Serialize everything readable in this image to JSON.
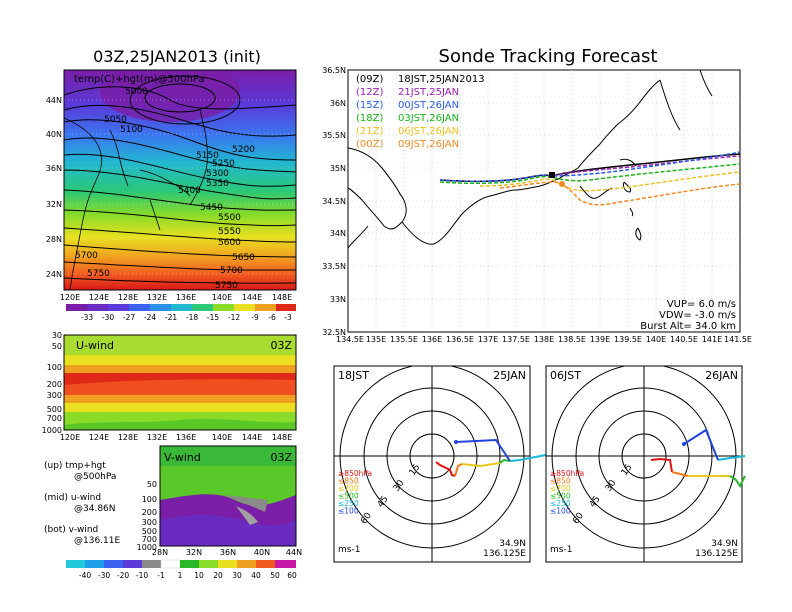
{
  "left_title": "03Z,25JAN2013 (init)",
  "right_title": "Sonde Tracking Forecast",
  "top_map": {
    "label": "temp(C)+hgt(m)@500hPa",
    "lat_labels": [
      "44N",
      "40N",
      "36N",
      "32N",
      "28N",
      "24N"
    ],
    "lon_labels": [
      "120E",
      "124E",
      "128E",
      "132E",
      "136E",
      "140E",
      "144E",
      "148E"
    ],
    "contour_labels": [
      "5000",
      "5050",
      "5100",
      "5150",
      "5200",
      "5250",
      "5300",
      "5350",
      "5400",
      "5450",
      "5500",
      "5550",
      "5600",
      "5650",
      "5700",
      "5700",
      "5750",
      "5750"
    ],
    "colorbar_labels": [
      "-33",
      "-30",
      "-27",
      "-24",
      "-21",
      "-18",
      "-15",
      "-12",
      "-9",
      "-6",
      "-3"
    ]
  },
  "u_panel": {
    "label": "U-wind",
    "time": "03Z",
    "p_labels": [
      "30",
      "50",
      "100",
      "200",
      "300",
      "500",
      "700",
      "1000"
    ],
    "lon_labels": [
      "120E",
      "124E",
      "128E",
      "132E",
      "136E",
      "140E",
      "144E",
      "148E"
    ]
  },
  "v_panel": {
    "label": "V-wind",
    "time": "03Z",
    "p_labels": [
      "50",
      "100",
      "200",
      "300",
      "500",
      "700",
      "1000"
    ],
    "lat_labels": [
      "28N",
      "32N",
      "36N",
      "40N",
      "44N"
    ]
  },
  "legend_notes": [
    {
      "title": "(up) tmp+hgt",
      "sub": "@500hPa"
    },
    {
      "title": "(mid) u-wind",
      "sub": "@34.86N"
    },
    {
      "title": "(bot) v-wind",
      "sub": "@136.11E"
    }
  ],
  "bottom_colorbar_labels": [
    "-40",
    "-30",
    "-20",
    "-10",
    "-1",
    "1",
    "10",
    "20",
    "30",
    "40",
    "50",
    "60"
  ],
  "track_map": {
    "lat_labels": [
      "36.5N",
      "36N",
      "35.5N",
      "35N",
      "34.5N",
      "34N",
      "33.5N",
      "33N",
      "32.5N"
    ],
    "lon_labels": [
      "134.5E",
      "135E",
      "135.5E",
      "136E",
      "136.5E",
      "137E",
      "137.5E",
      "138E",
      "138.5E",
      "139E",
      "139.5E",
      "140E",
      "140.5E",
      "141E",
      "141.5E"
    ],
    "legend": [
      {
        "code": "(09Z)",
        "text": "18JST,25JAN2013",
        "color": "#000000"
      },
      {
        "code": "(12Z)",
        "text": "21JST,25JAN",
        "color": "#9a1fb5"
      },
      {
        "code": "(15Z)",
        "text": "00JST,26JAN",
        "color": "#2a5ee8"
      },
      {
        "code": "(18Z)",
        "text": "03JST,26JAN",
        "color": "#18b418"
      },
      {
        "code": "(21Z)",
        "text": "06JST,26JAN",
        "color": "#f0c020"
      },
      {
        "code": "(00Z)",
        "text": "09JST,26JAN",
        "color": "#f08a24"
      }
    ],
    "params": [
      "VUP= 6.0 m/s",
      "VDW= -3.0 m/s",
      "Burst Alt= 34.0 km"
    ]
  },
  "polars": [
    {
      "time": "18JST",
      "date": "25JAN",
      "ring_labels": [
        "15",
        "30",
        "45",
        "60"
      ],
      "unit": "ms-1",
      "lat": "34.9N",
      "lon": "136.125E",
      "levels": [
        {
          "text": "≥850hPa",
          "color": "#e01010"
        },
        {
          "text": "≤850",
          "color": "#f07818"
        },
        {
          "text": "≤700",
          "color": "#e8c818"
        },
        {
          "text": "≤500",
          "color": "#28b828"
        },
        {
          "text": "≤250",
          "color": "#18b8d8"
        },
        {
          "text": "≤100",
          "color": "#2244dd"
        }
      ]
    },
    {
      "time": "06JST",
      "date": "26JAN",
      "ring_labels": [
        "15",
        "30",
        "45",
        "60"
      ],
      "unit": "ms-1",
      "lat": "34.9N",
      "lon": "136.125E",
      "levels": [
        {
          "text": "≥850hPa",
          "color": "#e01010"
        },
        {
          "text": "≤850",
          "color": "#f07818"
        },
        {
          "text": "≤700",
          "color": "#e8c818"
        },
        {
          "text": "≤500",
          "color": "#28b828"
        },
        {
          "text": "≤250",
          "color": "#18b8d8"
        },
        {
          "text": "≤100",
          "color": "#2244dd"
        }
      ]
    }
  ]
}
